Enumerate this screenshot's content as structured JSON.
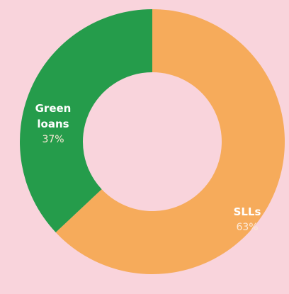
{
  "chart_data": {
    "type": "pie",
    "donut": true,
    "categories": [
      "SLLs",
      "Green loans"
    ],
    "values": [
      63,
      37
    ],
    "value_labels": [
      "63%",
      "37%"
    ],
    "colors": [
      "#f6ab5b",
      "#259c4b"
    ]
  }
}
